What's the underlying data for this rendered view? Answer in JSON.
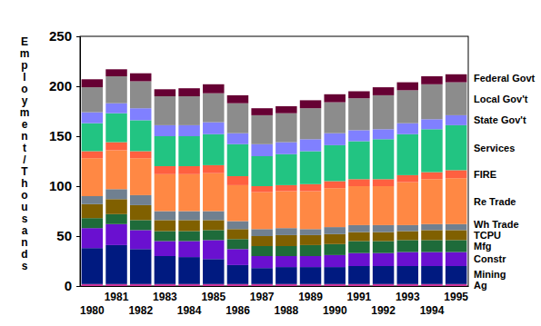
{
  "chart_data": {
    "type": "bar",
    "stacked": true,
    "y_label": "Employment/Thousands",
    "categories": [
      "1980",
      "1981",
      "1982",
      "1983",
      "1984",
      "1985",
      "1986",
      "1987",
      "1988",
      "1989",
      "1990",
      "1991",
      "1992",
      "1993",
      "1994",
      "1995"
    ],
    "ylim": [
      0,
      250
    ],
    "yticks": [
      0,
      50,
      100,
      150,
      200,
      250
    ],
    "series": [
      {
        "name": "Ag",
        "color": "#cc3399",
        "values": [
          2,
          2,
          2,
          2,
          2,
          2,
          2,
          2,
          2,
          2,
          2,
          2,
          2,
          2,
          2,
          2
        ]
      },
      {
        "name": "Mining",
        "color": "#001a80",
        "values": [
          36,
          39,
          35,
          28,
          27,
          25,
          19,
          16,
          17,
          17,
          17,
          18,
          18,
          18,
          18,
          18
        ]
      },
      {
        "name": "Constr",
        "color": "#6a10d0",
        "values": [
          20,
          21,
          19,
          15,
          16,
          19,
          16,
          12,
          11,
          11,
          12,
          13,
          13,
          14,
          14,
          14
        ]
      },
      {
        "name": "Mfg",
        "color": "#1e6b3a",
        "values": [
          10,
          10,
          10,
          10,
          10,
          10,
          10,
          10,
          10,
          11,
          11,
          12,
          12,
          12,
          12,
          12
        ]
      },
      {
        "name": "TCPU",
        "color": "#806000",
        "values": [
          14,
          15,
          15,
          11,
          11,
          10,
          10,
          10,
          11,
          10,
          10,
          9,
          9,
          9,
          10,
          10
        ]
      },
      {
        "name": "Wh Trade",
        "color": "#708090",
        "values": [
          8,
          10,
          10,
          9,
          9,
          9,
          8,
          7,
          7,
          6,
          7,
          7,
          7,
          6,
          6,
          6
        ]
      },
      {
        "name": "Re Trade",
        "color": "#ff8844",
        "values": [
          38,
          39,
          37,
          37,
          37,
          38,
          36,
          37,
          37,
          38,
          39,
          39,
          39,
          43,
          45,
          46
        ]
      },
      {
        "name": "FIRE",
        "color": "#ff6040",
        "values": [
          7,
          8,
          7,
          8,
          8,
          8,
          9,
          6,
          6,
          7,
          7,
          7,
          7,
          7,
          7,
          8
        ]
      },
      {
        "name": "Services",
        "color": "#22c482",
        "values": [
          28,
          29,
          31,
          30,
          30,
          31,
          32,
          30,
          31,
          33,
          36,
          38,
          40,
          41,
          43,
          45
        ]
      },
      {
        "name": "State Gov't",
        "color": "#8080ff",
        "values": [
          11,
          10,
          12,
          11,
          11,
          12,
          11,
          12,
          12,
          12,
          12,
          11,
          10,
          11,
          10,
          10
        ]
      },
      {
        "name": "Local Gov't",
        "color": "#8c8c8c",
        "values": [
          25,
          27,
          27,
          29,
          29,
          29,
          30,
          29,
          29,
          31,
          31,
          32,
          34,
          33,
          35,
          33
        ]
      },
      {
        "name": "Federal Govt",
        "color": "#660033",
        "values": [
          8,
          7,
          8,
          7,
          8,
          9,
          8,
          7,
          7,
          8,
          8,
          7,
          8,
          8,
          8,
          8
        ]
      }
    ]
  }
}
